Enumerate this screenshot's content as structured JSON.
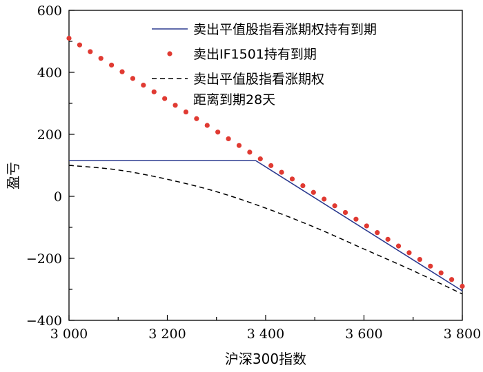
{
  "chart_data": {
    "type": "line",
    "xlabel": "沪深300指数",
    "ylabel": "盈亏",
    "xlim": [
      3000,
      3800
    ],
    "ylim": [
      -400,
      600
    ],
    "x_ticks": [
      {
        "value": 3000,
        "label": "3 000"
      },
      {
        "value": 3200,
        "label": "3 200"
      },
      {
        "value": 3400,
        "label": "3 400"
      },
      {
        "value": 3600,
        "label": "3 600"
      },
      {
        "value": 3800,
        "label": "3 800"
      }
    ],
    "y_ticks": [
      {
        "value": 600,
        "label": "600"
      },
      {
        "value": 400,
        "label": "400"
      },
      {
        "value": 200,
        "label": "200"
      },
      {
        "value": 0,
        "label": "0"
      },
      {
        "value": -200,
        "label": "−200"
      },
      {
        "value": -400,
        "label": "−400"
      }
    ],
    "grid": false,
    "legend_position": "top-right",
    "series": [
      {
        "name": "卖出平值股指看涨期权持有到期",
        "style": "solid",
        "color": "#2b3a8f",
        "x": [
          3000,
          3380,
          3800
        ],
        "y": [
          115,
          115,
          -305
        ]
      },
      {
        "name": "卖出IF1501持有到期",
        "style": "dots",
        "color": "#e03a32",
        "x": [
          3000,
          3800
        ],
        "y": [
          510,
          -290
        ],
        "point_count": 38
      },
      {
        "name": [
          "卖出平值股指看涨期权",
          "距离到期28天"
        ],
        "style": "dashed",
        "color": "#000000",
        "x": [
          3000,
          3100,
          3200,
          3300,
          3400,
          3500,
          3600,
          3700,
          3800
        ],
        "y": [
          100,
          85,
          55,
          15,
          -38,
          -100,
          -170,
          -240,
          -315
        ]
      }
    ]
  }
}
